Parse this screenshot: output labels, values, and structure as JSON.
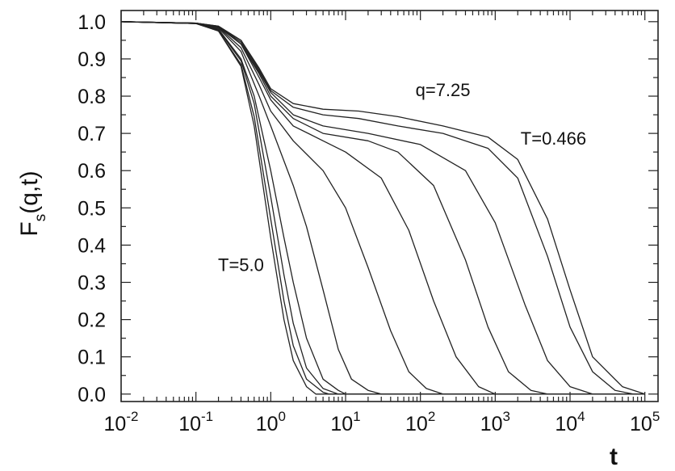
{
  "chart_data": {
    "type": "line",
    "title": "",
    "xlabel": "t",
    "ylabel": "F_s(q,t)",
    "ylabel_main": "F",
    "ylabel_sub": "s",
    "ylabel_tail": "(q,t)",
    "x_scale": "log",
    "xlim": [
      0.01,
      150000
    ],
    "ylim": [
      -0.02,
      1.03
    ],
    "x_tick_values": [
      0.01,
      0.1,
      1,
      10,
      100,
      1000,
      10000,
      100000
    ],
    "x_tick_labels": [
      {
        "base": "10",
        "exp": "-2"
      },
      {
        "base": "10",
        "exp": "-1"
      },
      {
        "base": "10",
        "exp": "0"
      },
      {
        "base": "10",
        "exp": "1"
      },
      {
        "base": "10",
        "exp": "2"
      },
      {
        "base": "10",
        "exp": "3"
      },
      {
        "base": "10",
        "exp": "4"
      },
      {
        "base": "10",
        "exp": "5"
      }
    ],
    "y_tick_values": [
      0.0,
      0.1,
      0.2,
      0.3,
      0.4,
      0.5,
      0.6,
      0.7,
      0.8,
      0.9,
      1.0
    ],
    "y_tick_labels": [
      "0.0",
      "0.1",
      "0.2",
      "0.3",
      "0.4",
      "0.5",
      "0.6",
      "0.7",
      "0.8",
      "0.9",
      "1.0"
    ],
    "grid": false,
    "legend": "none",
    "annotations": [
      {
        "text": "q=7.25",
        "x": 200,
        "y": 0.8
      },
      {
        "text": "T=0.466",
        "x": 6000,
        "y": 0.67
      },
      {
        "text": "T=5.0",
        "x": 0.4,
        "y": 0.33
      }
    ],
    "series": [
      {
        "values": [
          [
            0.01,
            1.0
          ],
          [
            0.1,
            0.995
          ],
          [
            0.2,
            0.975
          ],
          [
            0.4,
            0.88
          ],
          [
            0.6,
            0.72
          ],
          [
            1.0,
            0.42
          ],
          [
            1.5,
            0.2
          ],
          [
            2.0,
            0.09
          ],
          [
            3.0,
            0.02
          ],
          [
            4.0,
            0.0
          ],
          [
            100000,
            0.0
          ]
        ]
      },
      {
        "values": [
          [
            0.01,
            1.0
          ],
          [
            0.1,
            0.995
          ],
          [
            0.2,
            0.975
          ],
          [
            0.4,
            0.885
          ],
          [
            0.6,
            0.745
          ],
          [
            1.0,
            0.47
          ],
          [
            1.5,
            0.25
          ],
          [
            2.0,
            0.13
          ],
          [
            3.0,
            0.04
          ],
          [
            5.0,
            0.005
          ],
          [
            6.0,
            0.0
          ],
          [
            100000,
            0.0
          ]
        ]
      },
      {
        "values": [
          [
            0.01,
            1.0
          ],
          [
            0.1,
            0.995
          ],
          [
            0.2,
            0.978
          ],
          [
            0.4,
            0.895
          ],
          [
            0.6,
            0.78
          ],
          [
            1.0,
            0.53
          ],
          [
            1.5,
            0.32
          ],
          [
            2.0,
            0.19
          ],
          [
            3.0,
            0.07
          ],
          [
            5.0,
            0.015
          ],
          [
            8.0,
            0.0
          ],
          [
            100000,
            0.0
          ]
        ]
      },
      {
        "values": [
          [
            0.01,
            1.0
          ],
          [
            0.1,
            0.995
          ],
          [
            0.2,
            0.98
          ],
          [
            0.4,
            0.9
          ],
          [
            0.6,
            0.8
          ],
          [
            1.0,
            0.6
          ],
          [
            1.5,
            0.42
          ],
          [
            2.0,
            0.3
          ],
          [
            3.0,
            0.15
          ],
          [
            5.0,
            0.04
          ],
          [
            8.0,
            0.01
          ],
          [
            10.0,
            0.0
          ],
          [
            100000,
            0.0
          ]
        ]
      },
      {
        "values": [
          [
            0.01,
            1.0
          ],
          [
            0.1,
            0.995
          ],
          [
            0.2,
            0.983
          ],
          [
            0.4,
            0.92
          ],
          [
            0.7,
            0.8
          ],
          [
            1.0,
            0.72
          ],
          [
            2.0,
            0.56
          ],
          [
            3.0,
            0.45
          ],
          [
            5.0,
            0.28
          ],
          [
            8.0,
            0.12
          ],
          [
            12.0,
            0.04
          ],
          [
            20.0,
            0.01
          ],
          [
            30.0,
            0.0
          ],
          [
            100000,
            0.0
          ]
        ]
      },
      {
        "values": [
          [
            0.01,
            1.0
          ],
          [
            0.1,
            0.996
          ],
          [
            0.2,
            0.985
          ],
          [
            0.4,
            0.93
          ],
          [
            0.7,
            0.83
          ],
          [
            1.0,
            0.76
          ],
          [
            2.0,
            0.68
          ],
          [
            5.0,
            0.6
          ],
          [
            10.0,
            0.5
          ],
          [
            20.0,
            0.34
          ],
          [
            40.0,
            0.17
          ],
          [
            70.0,
            0.06
          ],
          [
            120.0,
            0.015
          ],
          [
            200.0,
            0.0
          ],
          [
            100000,
            0.0
          ]
        ]
      },
      {
        "values": [
          [
            0.01,
            1.0
          ],
          [
            0.1,
            0.996
          ],
          [
            0.2,
            0.986
          ],
          [
            0.4,
            0.94
          ],
          [
            0.7,
            0.85
          ],
          [
            1.0,
            0.79
          ],
          [
            2.0,
            0.72
          ],
          [
            5.0,
            0.68
          ],
          [
            10.0,
            0.65
          ],
          [
            30.0,
            0.58
          ],
          [
            70.0,
            0.44
          ],
          [
            150.0,
            0.25
          ],
          [
            300.0,
            0.1
          ],
          [
            600.0,
            0.02
          ],
          [
            1000.0,
            0.0
          ],
          [
            100000,
            0.0
          ]
        ]
      },
      {
        "values": [
          [
            0.01,
            1.0
          ],
          [
            0.1,
            0.996
          ],
          [
            0.2,
            0.987
          ],
          [
            0.4,
            0.94
          ],
          [
            0.7,
            0.86
          ],
          [
            1.0,
            0.8
          ],
          [
            2.0,
            0.74
          ],
          [
            5.0,
            0.7
          ],
          [
            20.0,
            0.68
          ],
          [
            50.0,
            0.65
          ],
          [
            150.0,
            0.56
          ],
          [
            400.0,
            0.36
          ],
          [
            800.0,
            0.18
          ],
          [
            1500.0,
            0.06
          ],
          [
            3000.0,
            0.01
          ],
          [
            5000.0,
            0.0
          ],
          [
            100000,
            0.0
          ]
        ]
      },
      {
        "values": [
          [
            0.01,
            1.0
          ],
          [
            0.1,
            0.996
          ],
          [
            0.2,
            0.987
          ],
          [
            0.4,
            0.945
          ],
          [
            0.7,
            0.865
          ],
          [
            1.0,
            0.81
          ],
          [
            2.0,
            0.75
          ],
          [
            5.0,
            0.72
          ],
          [
            20.0,
            0.7
          ],
          [
            100.0,
            0.67
          ],
          [
            400.0,
            0.6
          ],
          [
            1000.0,
            0.46
          ],
          [
            2500.0,
            0.24
          ],
          [
            5000.0,
            0.09
          ],
          [
            10000.0,
            0.02
          ],
          [
            20000.0,
            0.0
          ],
          [
            100000,
            0.0
          ]
        ]
      },
      {
        "values": [
          [
            0.01,
            1.0
          ],
          [
            0.1,
            0.996
          ],
          [
            0.2,
            0.988
          ],
          [
            0.4,
            0.95
          ],
          [
            0.7,
            0.87
          ],
          [
            1.0,
            0.815
          ],
          [
            2.0,
            0.77
          ],
          [
            5.0,
            0.75
          ],
          [
            15.0,
            0.74
          ],
          [
            50.0,
            0.72
          ],
          [
            200.0,
            0.7
          ],
          [
            800.0,
            0.66
          ],
          [
            2000.0,
            0.58
          ],
          [
            5000.0,
            0.37
          ],
          [
            10000.0,
            0.18
          ],
          [
            20000.0,
            0.06
          ],
          [
            40000.0,
            0.01
          ],
          [
            70000.0,
            0.0
          ],
          [
            100000,
            0.0
          ]
        ]
      },
      {
        "values": [
          [
            0.01,
            1.0
          ],
          [
            0.1,
            0.996
          ],
          [
            0.2,
            0.988
          ],
          [
            0.4,
            0.95
          ],
          [
            0.7,
            0.875
          ],
          [
            1.0,
            0.82
          ],
          [
            2.0,
            0.78
          ],
          [
            5.0,
            0.765
          ],
          [
            15.0,
            0.76
          ],
          [
            50.0,
            0.745
          ],
          [
            200.0,
            0.72
          ],
          [
            800.0,
            0.69
          ],
          [
            2000.0,
            0.63
          ],
          [
            5000.0,
            0.47
          ],
          [
            10000.0,
            0.28
          ],
          [
            20000.0,
            0.1
          ],
          [
            50000.0,
            0.02
          ],
          [
            100000.0,
            0.0
          ]
        ]
      }
    ]
  }
}
